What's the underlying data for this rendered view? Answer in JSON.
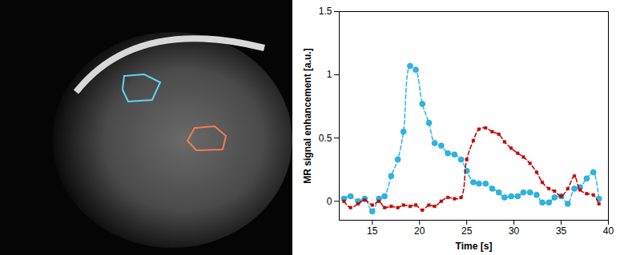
{
  "chart_data": {
    "type": "line",
    "xlabel": "Time [s]",
    "ylabel": "MR signal enhancement [a.u.]",
    "x": [
      12,
      12.7,
      13.5,
      14.2,
      15,
      15.7,
      16.3,
      17,
      17.7,
      18.3,
      19,
      19.6,
      20.3,
      21,
      21.6,
      22.3,
      23,
      23.7,
      24.4,
      25,
      25.7,
      26.3,
      27,
      27.7,
      28.4,
      29,
      29.7,
      30.4,
      31,
      31.7,
      32.4,
      33,
      33.7,
      34.3,
      35,
      35.7,
      36.4,
      37,
      37.7,
      38.4,
      39
    ],
    "series": [
      {
        "color": "#29b6e6",
        "marker": "circle",
        "line_style": "dashed",
        "values": [
          0.02,
          0.04,
          0.0,
          0.02,
          -0.08,
          0.02,
          0.04,
          0.2,
          0.33,
          0.55,
          1.07,
          1.04,
          0.77,
          0.62,
          0.46,
          0.44,
          0.38,
          0.37,
          0.33,
          0.24,
          0.15,
          0.14,
          0.14,
          0.1,
          0.07,
          0.03,
          0.04,
          0.04,
          0.07,
          0.07,
          0.05,
          -0.01,
          -0.01,
          0.03,
          0.04,
          -0.02,
          0.1,
          0.11,
          0.18,
          0.23,
          0.02
        ]
      },
      {
        "color": "#c00000",
        "marker": "square",
        "line_style": "dashed",
        "values": [
          0.0,
          -0.05,
          -0.02,
          0.01,
          -0.03,
          0.0,
          -0.05,
          -0.04,
          -0.05,
          -0.03,
          -0.04,
          -0.03,
          -0.07,
          -0.03,
          -0.04,
          0.0,
          0.03,
          0.02,
          0.03,
          0.33,
          0.48,
          0.57,
          0.58,
          0.55,
          0.53,
          0.47,
          0.42,
          0.38,
          0.35,
          0.3,
          0.23,
          0.15,
          0.1,
          0.08,
          0.04,
          0.1,
          0.2,
          0.09,
          0.06,
          0.05,
          -0.02
        ]
      }
    ],
    "xlim": [
      11.5,
      40
    ],
    "xticks": [
      15,
      20,
      25,
      30,
      35,
      40
    ],
    "ylim": [
      -0.15,
      1.5
    ],
    "yticks": [
      0,
      0.5,
      1,
      1.5
    ],
    "grid": false
  }
}
